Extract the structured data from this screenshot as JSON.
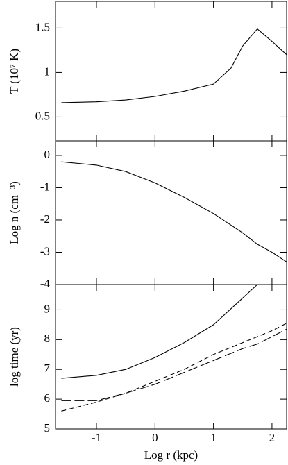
{
  "chart_data": [
    {
      "type": "line",
      "ylabel": "T (10⁷ K)",
      "xlim": [
        -1.7,
        2.25
      ],
      "xticks": [
        -1,
        0,
        1,
        2
      ],
      "ylim": [
        0.23,
        1.8
      ],
      "yticks": [
        0.5,
        1,
        1.5
      ],
      "x": [
        -1.6,
        -1,
        -0.5,
        0,
        0.5,
        1,
        1.3,
        1.5,
        1.75,
        2,
        2.25
      ],
      "series": [
        {
          "color": "#000000",
          "linestyle": "solid",
          "values": [
            0.66,
            0.67,
            0.69,
            0.73,
            0.79,
            0.87,
            1.05,
            1.3,
            1.49,
            1.35,
            1.2
          ]
        }
      ]
    },
    {
      "type": "line",
      "ylabel": "Log n (cm⁻³)",
      "xlim": [
        -1.7,
        2.25
      ],
      "xticks": [
        -1,
        0,
        1,
        2
      ],
      "ylim": [
        -4,
        0.45
      ],
      "yticks": [
        -4,
        -3,
        -2,
        -1,
        0
      ],
      "x": [
        -1.6,
        -1,
        -0.5,
        0,
        0.5,
        1,
        1.5,
        1.75,
        2,
        2.25
      ],
      "series": [
        {
          "color": "#000000",
          "linestyle": "solid",
          "values": [
            -0.2,
            -0.3,
            -0.5,
            -0.85,
            -1.3,
            -1.8,
            -2.4,
            -2.75,
            -3.0,
            -3.3
          ]
        }
      ]
    },
    {
      "type": "line",
      "ylabel": "log time (yr)",
      "xlabel": "Log r (kpc)",
      "xlim": [
        -1.7,
        2.25
      ],
      "xticks": [
        -1,
        0,
        1,
        2
      ],
      "ylim": [
        5,
        9.85
      ],
      "yticks": [
        5,
        6,
        7,
        8,
        9
      ],
      "x": [
        -1.6,
        -1,
        -0.5,
        0,
        0.5,
        1,
        1.5,
        1.75,
        2,
        2.25
      ],
      "series": [
        {
          "color": "#000000",
          "linestyle": "solid",
          "values": [
            6.7,
            6.8,
            7.0,
            7.4,
            7.9,
            8.5,
            9.4,
            9.85,
            null,
            null
          ]
        },
        {
          "color": "#000000",
          "linestyle": "dashed",
          "values": [
            5.6,
            5.9,
            6.2,
            6.6,
            7.0,
            7.5,
            7.9,
            8.1,
            8.3,
            8.55
          ]
        },
        {
          "color": "#000000",
          "linestyle": "long-dash",
          "values": [
            5.95,
            5.95,
            6.2,
            6.5,
            6.9,
            7.3,
            7.7,
            7.85,
            8.1,
            8.35
          ]
        }
      ]
    }
  ]
}
